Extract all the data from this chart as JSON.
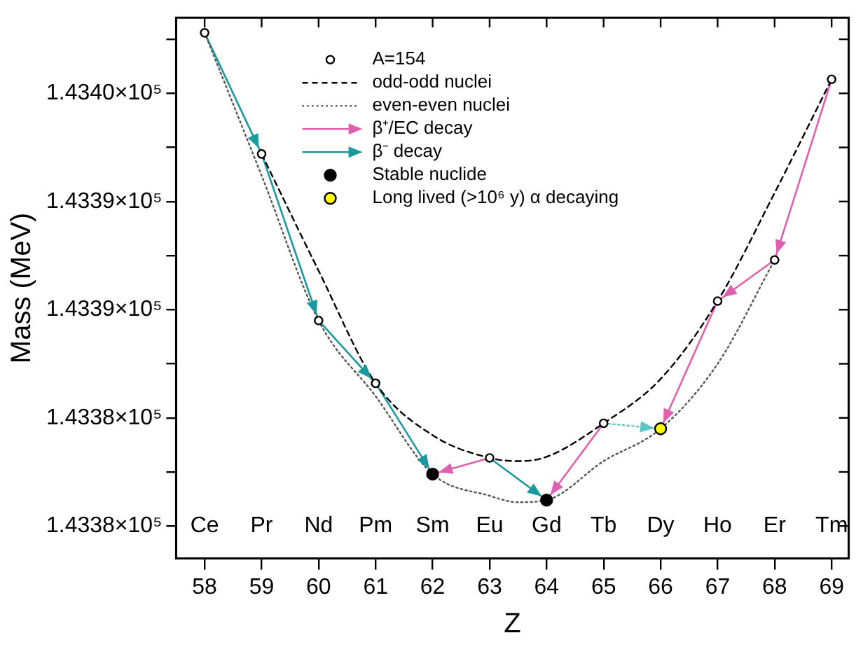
{
  "chart_data": {
    "type": "line",
    "xlabel": "Z",
    "ylabel": "Mass (MeV)",
    "legend": "top",
    "grid": false,
    "xlim": [
      57.5,
      69.3
    ],
    "xticks": [
      58,
      59,
      60,
      61,
      62,
      63,
      64,
      65,
      66,
      67,
      68,
      69
    ],
    "ylim": [
      143378.5,
      143403.5
    ],
    "yticks": [
      {
        "value": 143380,
        "label": "1.4338×10⁵"
      },
      {
        "value": 143382.5,
        "label": null
      },
      {
        "value": 143385,
        "label": "1.4338×10⁵"
      },
      {
        "value": 143387.5,
        "label": null
      },
      {
        "value": 143390,
        "label": "1.4339×10⁵"
      },
      {
        "value": 143392.5,
        "label": null
      },
      {
        "value": 143395,
        "label": "1.4339×10⁵"
      },
      {
        "value": 143397.5,
        "label": null
      },
      {
        "value": 143400,
        "label": "1.4340×10⁵"
      },
      {
        "value": 143402.5,
        "label": null
      }
    ],
    "annotations": [
      "Ce",
      "Pr",
      "Nd",
      "Pm",
      "Sm",
      "Eu",
      "Gd",
      "Tb",
      "Dy",
      "Ho",
      "Er",
      "Tm"
    ],
    "series": [
      {
        "name": "A=154",
        "type": "scatter",
        "marker": "circle",
        "color": "#000000",
        "x": [
          58,
          59,
          60,
          61,
          62,
          63,
          64,
          65,
          66,
          67,
          68,
          69
        ],
        "values": [
          143402.8,
          143397.2,
          143389.5,
          143386.6,
          null,
          143383.15,
          null,
          143384.75,
          null,
          143390.4,
          143392.3,
          143400.65
        ]
      },
      {
        "name": "odd-odd nuclei",
        "line_style": "dashed",
        "color": "#000000",
        "x": [
          59,
          60,
          61,
          62,
          63,
          63.5,
          64,
          65,
          66,
          67,
          68,
          69
        ],
        "values": [
          143397.2,
          143391.8,
          143386.6,
          143384.2,
          143383.15,
          143383.0,
          143383.2,
          143384.75,
          143386.8,
          143390.4,
          143395.4,
          143400.65
        ]
      },
      {
        "name": "even-even nuclei",
        "line_style": "dotted",
        "color": "#555555",
        "x": [
          58,
          59,
          60,
          61,
          62,
          63,
          63.5,
          64,
          65,
          66,
          67,
          68
        ],
        "values": [
          143402.8,
          143396.2,
          143389.5,
          143386.0,
          143382.4,
          143381.4,
          143381.1,
          143381.2,
          143383.0,
          143384.5,
          143387.5,
          143392.3
        ]
      },
      {
        "name": "β⁺/EC decay",
        "line_style": "solid",
        "color": "#e060b0",
        "x": [
          69,
          68,
          null,
          68,
          67,
          null,
          67,
          66,
          null,
          65,
          64,
          null,
          63,
          62
        ],
        "values": [
          143400.65,
          143392.3,
          null,
          143392.3,
          143390.4,
          null,
          143390.4,
          143384.5,
          null,
          143384.75,
          143381.2,
          null,
          143383.15,
          143382.4
        ]
      },
      {
        "name": "β⁻ decay",
        "line_style": "solid",
        "color": "#1a9a9e",
        "x": [
          58,
          59,
          null,
          59,
          60,
          null,
          60,
          61,
          null,
          61,
          62,
          null,
          63,
          64
        ],
        "values": [
          143402.8,
          143397.2,
          null,
          143397.2,
          143389.5,
          null,
          143389.5,
          143386.6,
          null,
          143386.6,
          143382.4,
          null,
          143383.15,
          143381.2
        ]
      },
      {
        "line_style": "dotted",
        "color": "#5fc4c8",
        "x": [
          65,
          66
        ],
        "values": [
          143384.75,
          143384.5
        ]
      },
      {
        "name": "Stable nuclide",
        "type": "scatter",
        "marker": "circle",
        "color": "#000000",
        "x": [
          62,
          64
        ],
        "values": [
          143382.4,
          143381.2
        ]
      },
      {
        "name": "Long lived (>10⁶ y) α decaying",
        "type": "scatter",
        "marker": "circle",
        "color": "#ffff00",
        "x": [
          66
        ],
        "values": [
          143384.5
        ]
      }
    ]
  }
}
